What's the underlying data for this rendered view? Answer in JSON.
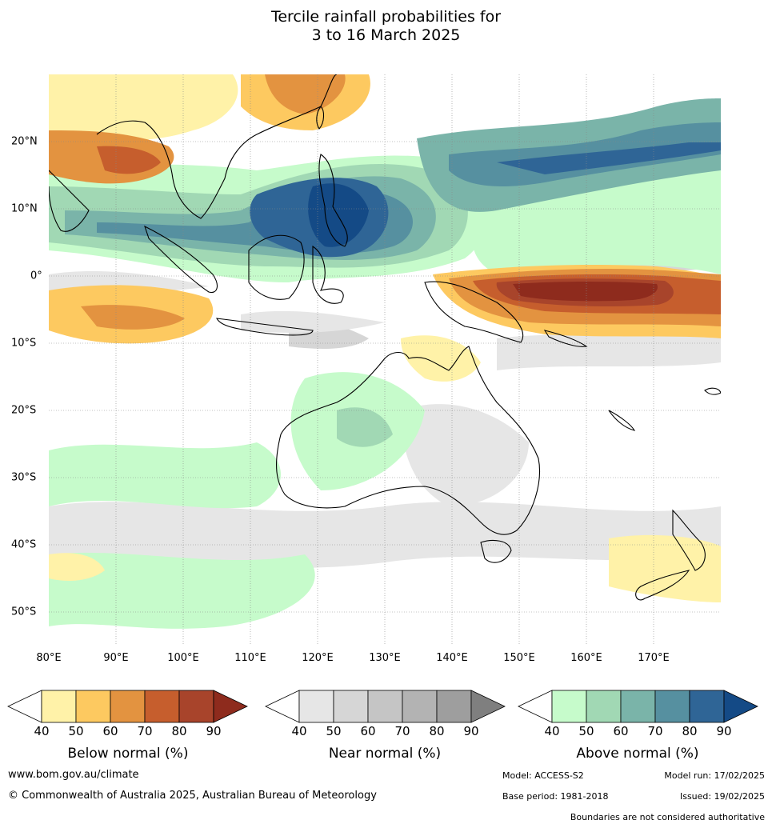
{
  "title_line1": "Tercile rainfall probabilities for",
  "title_line2": "3 to 16 March 2025",
  "lon_ticks": [
    "80°E",
    "90°E",
    "100°E",
    "110°E",
    "120°E",
    "130°E",
    "140°E",
    "150°E",
    "160°E",
    "170°E"
  ],
  "lat_ticks": [
    "20°N",
    "10°N",
    "0°",
    "10°S",
    "20°S",
    "30°S",
    "40°S",
    "50°S"
  ],
  "colorbars": [
    {
      "title": "Below normal (%)",
      "ticks": [
        "40",
        "50",
        "60",
        "70",
        "80",
        "90"
      ],
      "colors": [
        "#fff2a8",
        "#fdc960",
        "#e39340",
        "#c65e2d",
        "#a8442b",
        "#8e2b1d"
      ]
    },
    {
      "title": "Near normal (%)",
      "ticks": [
        "40",
        "50",
        "60",
        "70",
        "80",
        "90"
      ],
      "colors": [
        "#e6e6e6",
        "#d6d6d6",
        "#c5c5c5",
        "#b3b3b3",
        "#9e9e9e",
        "#7f7f7f"
      ]
    },
    {
      "title": "Above normal (%)",
      "ticks": [
        "40",
        "50",
        "60",
        "70",
        "80",
        "90"
      ],
      "colors": [
        "#c6fbcb",
        "#a1d8b4",
        "#7ab4a9",
        "#5690a0",
        "#2f6596",
        "#144a86"
      ]
    }
  ],
  "footer": {
    "website": "www.bom.gov.au/climate",
    "copyright": "© Commonwealth of Australia 2025, Australian Bureau of Meteorology",
    "model": "Model: ACCESS-S2",
    "model_run": "Model run: 17/02/2025",
    "base_period": "Base period: 1981-2018",
    "issued": "Issued: 19/02/2025",
    "boundaries_note": "Boundaries are not considered authoritative"
  }
}
